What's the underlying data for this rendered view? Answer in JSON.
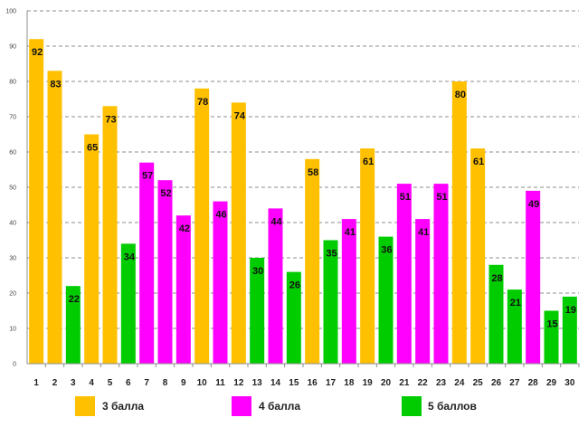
{
  "chart_data": {
    "type": "bar",
    "title": "",
    "xlabel": "",
    "ylabel": "",
    "ylim": [
      0,
      100
    ],
    "yticks": [
      "0",
      "10",
      "20",
      "30",
      "40",
      "50",
      "60",
      "70",
      "80",
      "90",
      "100"
    ],
    "categories": [
      "1",
      "2",
      "3",
      "4",
      "5",
      "6",
      "7",
      "8",
      "9",
      "10",
      "11",
      "12",
      "13",
      "14",
      "15",
      "16",
      "17",
      "18",
      "19",
      "20",
      "21",
      "22",
      "23",
      "24",
      "25",
      "26",
      "27",
      "28",
      "29",
      "30"
    ],
    "values": [
      92,
      83,
      22,
      65,
      73,
      34,
      57,
      52,
      42,
      78,
      46,
      74,
      30,
      44,
      26,
      58,
      35,
      41,
      61,
      36,
      51,
      41,
      51,
      80,
      61,
      28,
      21,
      49,
      15,
      19
    ],
    "series_index": [
      0,
      0,
      2,
      0,
      0,
      2,
      1,
      1,
      1,
      0,
      1,
      0,
      2,
      1,
      2,
      0,
      2,
      1,
      0,
      2,
      1,
      1,
      1,
      0,
      0,
      2,
      2,
      1,
      2,
      2
    ],
    "series": [
      {
        "name": "3 балла",
        "color": "#FFC000"
      },
      {
        "name": "4 балла",
        "color": "#FF00FF"
      },
      {
        "name": "5 баллов",
        "color": "#00CC00"
      }
    ],
    "grid": true,
    "legend": "bottom"
  }
}
